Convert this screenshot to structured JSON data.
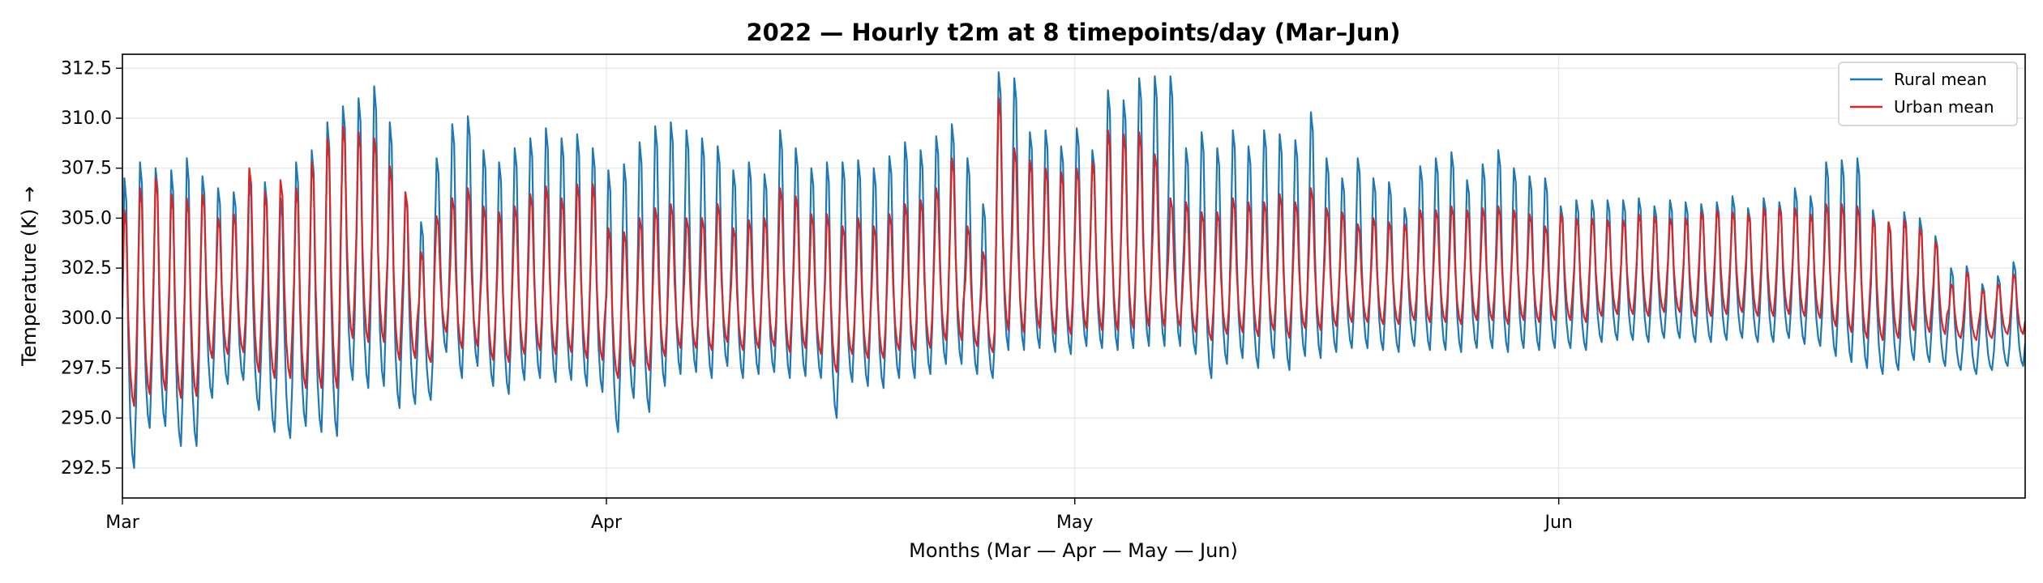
{
  "chart_data": {
    "type": "line",
    "title": "2022 — Hourly t2m at 8 timepoints/day (Mar–Jun)",
    "xlabel": "Months (Mar — Apr — May — Jun)",
    "ylabel": "Temperature (K) →",
    "x_range": [
      "2022-03-01",
      "2022-06-30 21:00"
    ],
    "x_ticks": [
      {
        "label": "Mar",
        "date": "2022-03-01"
      },
      {
        "label": "Apr",
        "date": "2022-04-01"
      },
      {
        "label": "May",
        "date": "2022-05-01"
      },
      {
        "label": "Jun",
        "date": "2022-06-01"
      }
    ],
    "ylim": [
      291.0,
      313.2
    ],
    "y_ticks": [
      "292.5",
      "295.0",
      "297.5",
      "300.0",
      "302.5",
      "305.0",
      "307.5",
      "310.0",
      "312.5"
    ],
    "grid": true,
    "legend_position": "top-right",
    "samples_per_day": 8,
    "series": [
      {
        "name": "Rural mean",
        "color": "#1f77b4",
        "daily_max": [
          307.0,
          307.8,
          307.5,
          307.4,
          308.0,
          307.1,
          306.5,
          306.3,
          307.0,
          306.8,
          306.0,
          307.8,
          308.4,
          309.8,
          310.6,
          311.0,
          311.6,
          309.8,
          306.3,
          304.8,
          308.0,
          309.7,
          310.1,
          308.4,
          307.8,
          308.5,
          309.0,
          309.5,
          309.0,
          309.2,
          308.5,
          307.4,
          307.7,
          308.8,
          309.6,
          309.8,
          309.4,
          309.0,
          308.6,
          307.4,
          307.8,
          307.2,
          309.4,
          308.5,
          307.5,
          307.8,
          307.8,
          307.9,
          307.5,
          308.1,
          308.8,
          308.4,
          309.1,
          309.7,
          308.0,
          305.7,
          312.3,
          312.0,
          309.3,
          309.4,
          308.6,
          309.5,
          308.4,
          311.4,
          310.9,
          312.0,
          312.1,
          312.1,
          308.5,
          309.3,
          308.5,
          309.4,
          308.6,
          309.4,
          309.2,
          308.9,
          310.3,
          308.0,
          307.0,
          308.0,
          307.0,
          306.8,
          305.5,
          307.6,
          308.0,
          308.3,
          306.9,
          307.7,
          308.4,
          307.5,
          307.1,
          307.0,
          305.6,
          305.9,
          305.9,
          305.9,
          305.9,
          306.0,
          305.6,
          305.9,
          305.8,
          305.7,
          305.8,
          306.1,
          305.5,
          306.0,
          305.8,
          306.5,
          306.1,
          307.8,
          307.9,
          308.0,
          305.4,
          304.8,
          305.3,
          305.0,
          304.1,
          302.5,
          302.6,
          301.7,
          302.1,
          302.8,
          302.9,
          301.8
        ],
        "daily_min": [
          292.5,
          294.5,
          294.6,
          293.6,
          293.6,
          296.0,
          296.7,
          296.9,
          295.4,
          294.3,
          294.0,
          294.6,
          294.3,
          294.1,
          296.9,
          296.5,
          296.6,
          295.5,
          295.7,
          295.9,
          298.3,
          297.0,
          297.6,
          296.6,
          296.2,
          296.9,
          297.0,
          296.8,
          296.9,
          296.6,
          296.3,
          294.3,
          296.0,
          295.3,
          296.6,
          297.2,
          297.3,
          297.0,
          297.6,
          297.0,
          297.2,
          297.3,
          297.0,
          297.1,
          297.0,
          295.0,
          296.8,
          296.6,
          296.5,
          297.0,
          297.0,
          297.2,
          297.7,
          297.7,
          297.2,
          297.0,
          298.4,
          298.4,
          298.5,
          298.3,
          298.2,
          298.6,
          298.5,
          298.4,
          298.5,
          298.6,
          298.6,
          298.6,
          298.2,
          297.0,
          297.7,
          298.0,
          297.5,
          298.0,
          297.4,
          298.1,
          298.0,
          298.3,
          298.5,
          298.5,
          298.4,
          298.3,
          298.6,
          298.4,
          298.4,
          298.3,
          298.5,
          298.5,
          298.3,
          298.5,
          298.4,
          298.5,
          298.5,
          298.4,
          298.8,
          298.9,
          298.9,
          298.8,
          299.0,
          299.0,
          298.8,
          298.8,
          298.9,
          299.0,
          298.8,
          298.8,
          299.0,
          298.7,
          298.6,
          298.1,
          297.8,
          297.5,
          297.2,
          297.4,
          297.9,
          297.8,
          297.6,
          297.4,
          297.2,
          297.4,
          297.6,
          297.6
        ]
      },
      {
        "name": "Urban mean",
        "color": "#d62728",
        "daily_max": [
          305.4,
          306.5,
          307.0,
          306.2,
          306.0,
          306.2,
          305.0,
          305.2,
          307.5,
          306.3,
          306.9,
          306.5,
          307.8,
          309.0,
          309.6,
          309.3,
          309.0,
          307.6,
          306.3,
          303.3,
          305.1,
          306.0,
          306.5,
          305.6,
          305.3,
          305.6,
          306.2,
          306.6,
          306.0,
          306.7,
          306.7,
          304.5,
          304.3,
          305.0,
          305.5,
          305.7,
          305.0,
          305.0,
          305.7,
          304.5,
          304.9,
          305.0,
          306.5,
          306.1,
          305.2,
          305.2,
          304.6,
          305.0,
          304.6,
          305.2,
          305.7,
          305.9,
          306.5,
          308.0,
          304.6,
          303.3,
          311.0,
          308.5,
          307.9,
          307.5,
          307.3,
          307.5,
          307.8,
          309.4,
          309.2,
          309.3,
          308.2,
          306.0,
          305.8,
          305.3,
          305.3,
          306.0,
          305.8,
          305.8,
          306.2,
          305.8,
          306.5,
          305.5,
          305.3,
          304.7,
          305.0,
          304.8,
          304.7,
          305.4,
          305.4,
          305.6,
          305.4,
          305.5,
          305.6,
          305.4,
          305.2,
          304.6,
          305.2,
          305.0,
          305.0,
          304.9,
          304.9,
          305.2,
          305.1,
          305.0,
          305.0,
          305.3,
          305.4,
          305.3,
          305.2,
          305.5,
          305.5,
          305.5,
          305.2,
          305.7,
          305.7,
          305.6,
          305.0,
          304.8,
          304.9,
          304.5,
          303.8,
          301.7,
          302.3,
          301.4,
          301.7,
          302.2,
          302.3,
          301.5
        ],
        "daily_min": [
          295.6,
          296.2,
          296.4,
          296.0,
          296.1,
          298.0,
          298.2,
          298.3,
          297.3,
          297.0,
          297.0,
          296.5,
          296.5,
          296.5,
          299.0,
          298.8,
          298.8,
          297.9,
          298.0,
          297.8,
          299.3,
          298.5,
          298.6,
          297.9,
          297.8,
          298.2,
          298.4,
          298.2,
          298.3,
          298.0,
          297.9,
          297.0,
          297.6,
          297.4,
          298.1,
          298.5,
          298.5,
          298.4,
          298.8,
          298.4,
          298.5,
          298.6,
          298.3,
          298.5,
          298.2,
          297.3,
          298.2,
          298.0,
          298.0,
          298.4,
          298.4,
          298.5,
          298.9,
          298.9,
          298.6,
          298.3,
          299.4,
          299.3,
          299.5,
          299.2,
          299.2,
          299.5,
          299.4,
          299.4,
          299.5,
          299.6,
          299.6,
          299.6,
          299.3,
          298.9,
          299.2,
          299.3,
          299.1,
          299.4,
          299.0,
          299.5,
          299.4,
          299.6,
          299.8,
          299.8,
          299.7,
          299.7,
          299.9,
          299.8,
          299.8,
          299.7,
          299.9,
          299.9,
          299.7,
          299.9,
          299.8,
          299.9,
          299.9,
          299.8,
          300.1,
          300.2,
          300.2,
          300.1,
          300.3,
          300.3,
          300.1,
          300.1,
          300.2,
          300.3,
          300.1,
          300.1,
          300.2,
          300.1,
          300.0,
          299.6,
          299.3,
          299.0,
          298.9,
          299.0,
          299.4,
          299.3,
          299.2,
          299.0,
          298.9,
          299.0,
          299.2,
          299.2
        ]
      }
    ]
  }
}
